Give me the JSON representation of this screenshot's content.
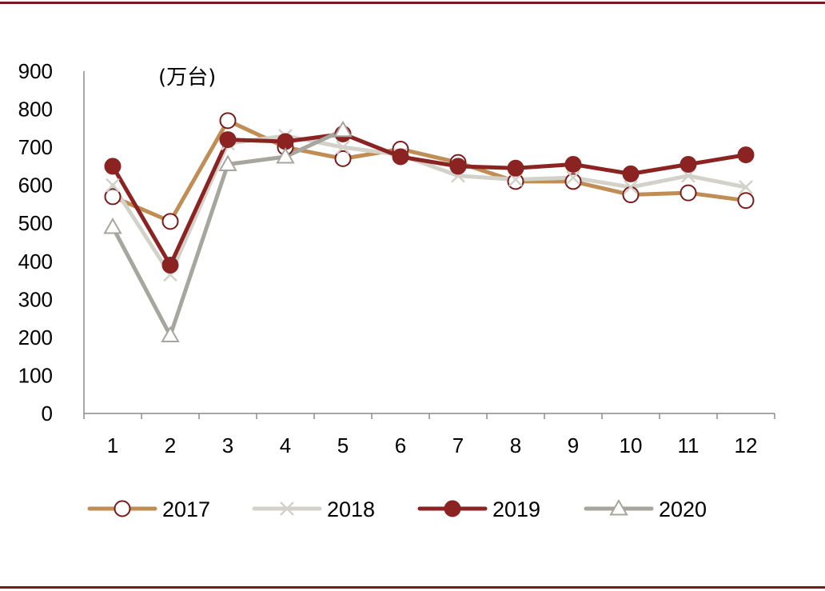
{
  "chart_data": {
    "type": "line",
    "unit_label": "(万台)",
    "xlabel": "",
    "ylabel": "",
    "categories": [
      "1",
      "2",
      "3",
      "4",
      "5",
      "6",
      "7",
      "8",
      "9",
      "10",
      "11",
      "12"
    ],
    "y_ticks": [
      "0",
      "100",
      "200",
      "300",
      "400",
      "500",
      "600",
      "700",
      "800",
      "900"
    ],
    "ylim": [
      0,
      900
    ],
    "grid": false,
    "legend_position": "bottom",
    "series": [
      {
        "name": "2017",
        "color": "#c08d55",
        "marker": "open-circle",
        "values": [
          570,
          505,
          770,
          700,
          670,
          695,
          660,
          610,
          610,
          575,
          580,
          560
        ]
      },
      {
        "name": "2018",
        "color": "#d3d2ca",
        "marker": "x",
        "values": [
          600,
          365,
          710,
          730,
          700,
          680,
          625,
          615,
          620,
          595,
          625,
          595
        ]
      },
      {
        "name": "2019",
        "color": "#8b2323",
        "marker": "filled-circle",
        "values": [
          650,
          390,
          720,
          715,
          735,
          675,
          650,
          645,
          655,
          630,
          655,
          680
        ]
      },
      {
        "name": "2020",
        "color": "#a6a69e",
        "marker": "open-triangle",
        "values": [
          490,
          205,
          655,
          675,
          745,
          null,
          null,
          null,
          null,
          null,
          null,
          null
        ]
      }
    ]
  }
}
